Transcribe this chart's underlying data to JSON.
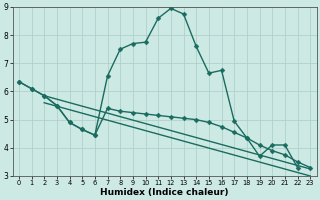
{
  "title": "",
  "xlabel": "Humidex (Indice chaleur)",
  "xlim": [
    -0.5,
    23.5
  ],
  "ylim": [
    3,
    9
  ],
  "xticks": [
    0,
    1,
    2,
    3,
    4,
    5,
    6,
    7,
    8,
    9,
    10,
    11,
    12,
    13,
    14,
    15,
    16,
    17,
    18,
    19,
    20,
    21,
    22,
    23
  ],
  "yticks": [
    3,
    4,
    5,
    6,
    7,
    8,
    9
  ],
  "background_color": "#cde9e4",
  "grid_color": "#b0d0cc",
  "line_color": "#1a6b60",
  "line1_x": [
    0,
    1,
    2,
    3,
    4,
    5,
    6,
    7,
    8,
    9,
    10,
    11,
    12,
    13,
    14,
    15,
    16,
    17,
    18,
    19,
    20,
    21,
    22
  ],
  "line1_y": [
    6.35,
    6.1,
    5.85,
    5.5,
    4.9,
    4.65,
    4.45,
    6.55,
    7.5,
    7.7,
    7.75,
    8.6,
    8.95,
    8.75,
    7.6,
    6.65,
    6.75,
    4.95,
    4.35,
    3.7,
    4.1,
    4.1,
    3.3
  ],
  "line2_x": [
    0,
    1,
    2,
    3,
    4,
    5,
    6,
    7,
    8,
    9,
    10,
    11,
    12,
    13,
    14,
    15,
    16,
    17,
    18,
    19,
    20,
    21,
    22,
    23
  ],
  "line2_y": [
    6.35,
    6.1,
    5.85,
    5.5,
    4.9,
    4.65,
    4.45,
    5.4,
    5.3,
    5.25,
    5.2,
    5.15,
    5.1,
    5.05,
    5.0,
    4.9,
    4.75,
    4.55,
    4.35,
    4.1,
    3.9,
    3.75,
    3.5,
    3.3
  ],
  "line3_x": [
    2,
    23
  ],
  "line3_y": [
    5.85,
    3.25
  ],
  "line4_x": [
    2,
    23
  ],
  "line4_y": [
    5.6,
    3.0
  ],
  "line_width": 1.0,
  "marker_size": 2.5
}
